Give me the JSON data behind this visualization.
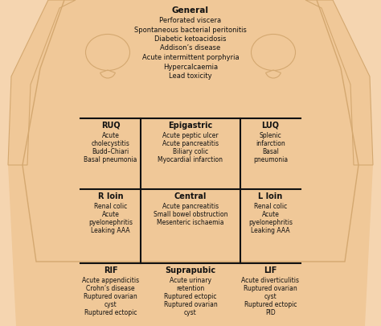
{
  "bg_color": "#f5d5b0",
  "body_color": "#f0c898",
  "body_dark": "#d4a870",
  "grid_color": "#111111",
  "text_color": "#111111",
  "general_title": "General",
  "general_items": [
    "Perforated viscera",
    "Spontaneous bacterial peritonitis",
    "Diabetic ketoacidosis",
    "Addison’s disease",
    "Acute intermittent porphyria",
    "Hypercalcaemia",
    "Lead toxicity"
  ],
  "cells": [
    {
      "label": "RUQ",
      "col": 0,
      "row": 0,
      "items": [
        "Acute",
        "cholecystitis",
        "Budd–Chiari",
        "Basal pneumonia"
      ]
    },
    {
      "label": "Epigastric",
      "col": 1,
      "row": 0,
      "items": [
        "Acute peptic ulcer",
        "Acute pancreatitis",
        "Biliary colic",
        "Myocardial infarction"
      ]
    },
    {
      "label": "LUQ",
      "col": 2,
      "row": 0,
      "items": [
        "Splenic",
        "infarction",
        "Basal",
        "pneumonia"
      ]
    },
    {
      "label": "R loin",
      "col": 0,
      "row": 1,
      "items": [
        "Renal colic",
        "Acute",
        "pyelonephritis",
        "Leaking AAA"
      ]
    },
    {
      "label": "Central",
      "col": 1,
      "row": 1,
      "items": [
        "Acute pancreatitis",
        "Small bowel obstruction",
        "Mesenteric ischaemia"
      ]
    },
    {
      "label": "L loin",
      "col": 2,
      "row": 1,
      "items": [
        "Renal colic",
        "Acute",
        "pyelonephritis",
        "Leaking AAA"
      ]
    },
    {
      "label": "RIF",
      "col": 0,
      "row": 2,
      "items": [
        "Acute appendicitis",
        "Crohn’s disease",
        "Ruptured ovarian",
        "cyst",
        "Ruptured ectopic"
      ]
    },
    {
      "label": "Suprapubic",
      "col": 1,
      "row": 2,
      "items": [
        "Acute urinary",
        "retention",
        "Ruptured ectopic",
        "Ruptured ovarian",
        "cyst"
      ]
    },
    {
      "label": "LIF",
      "col": 2,
      "row": 2,
      "items": [
        "Acute diverticulitis",
        "Ruptured ovarian",
        "cyst",
        "Ruptured ectopic",
        "PID"
      ]
    }
  ],
  "figsize": [
    4.74,
    4.05
  ],
  "dpi": 100,
  "font_label": 7.0,
  "font_item": 5.5,
  "font_general_title": 7.5,
  "font_general_item": 6.0
}
